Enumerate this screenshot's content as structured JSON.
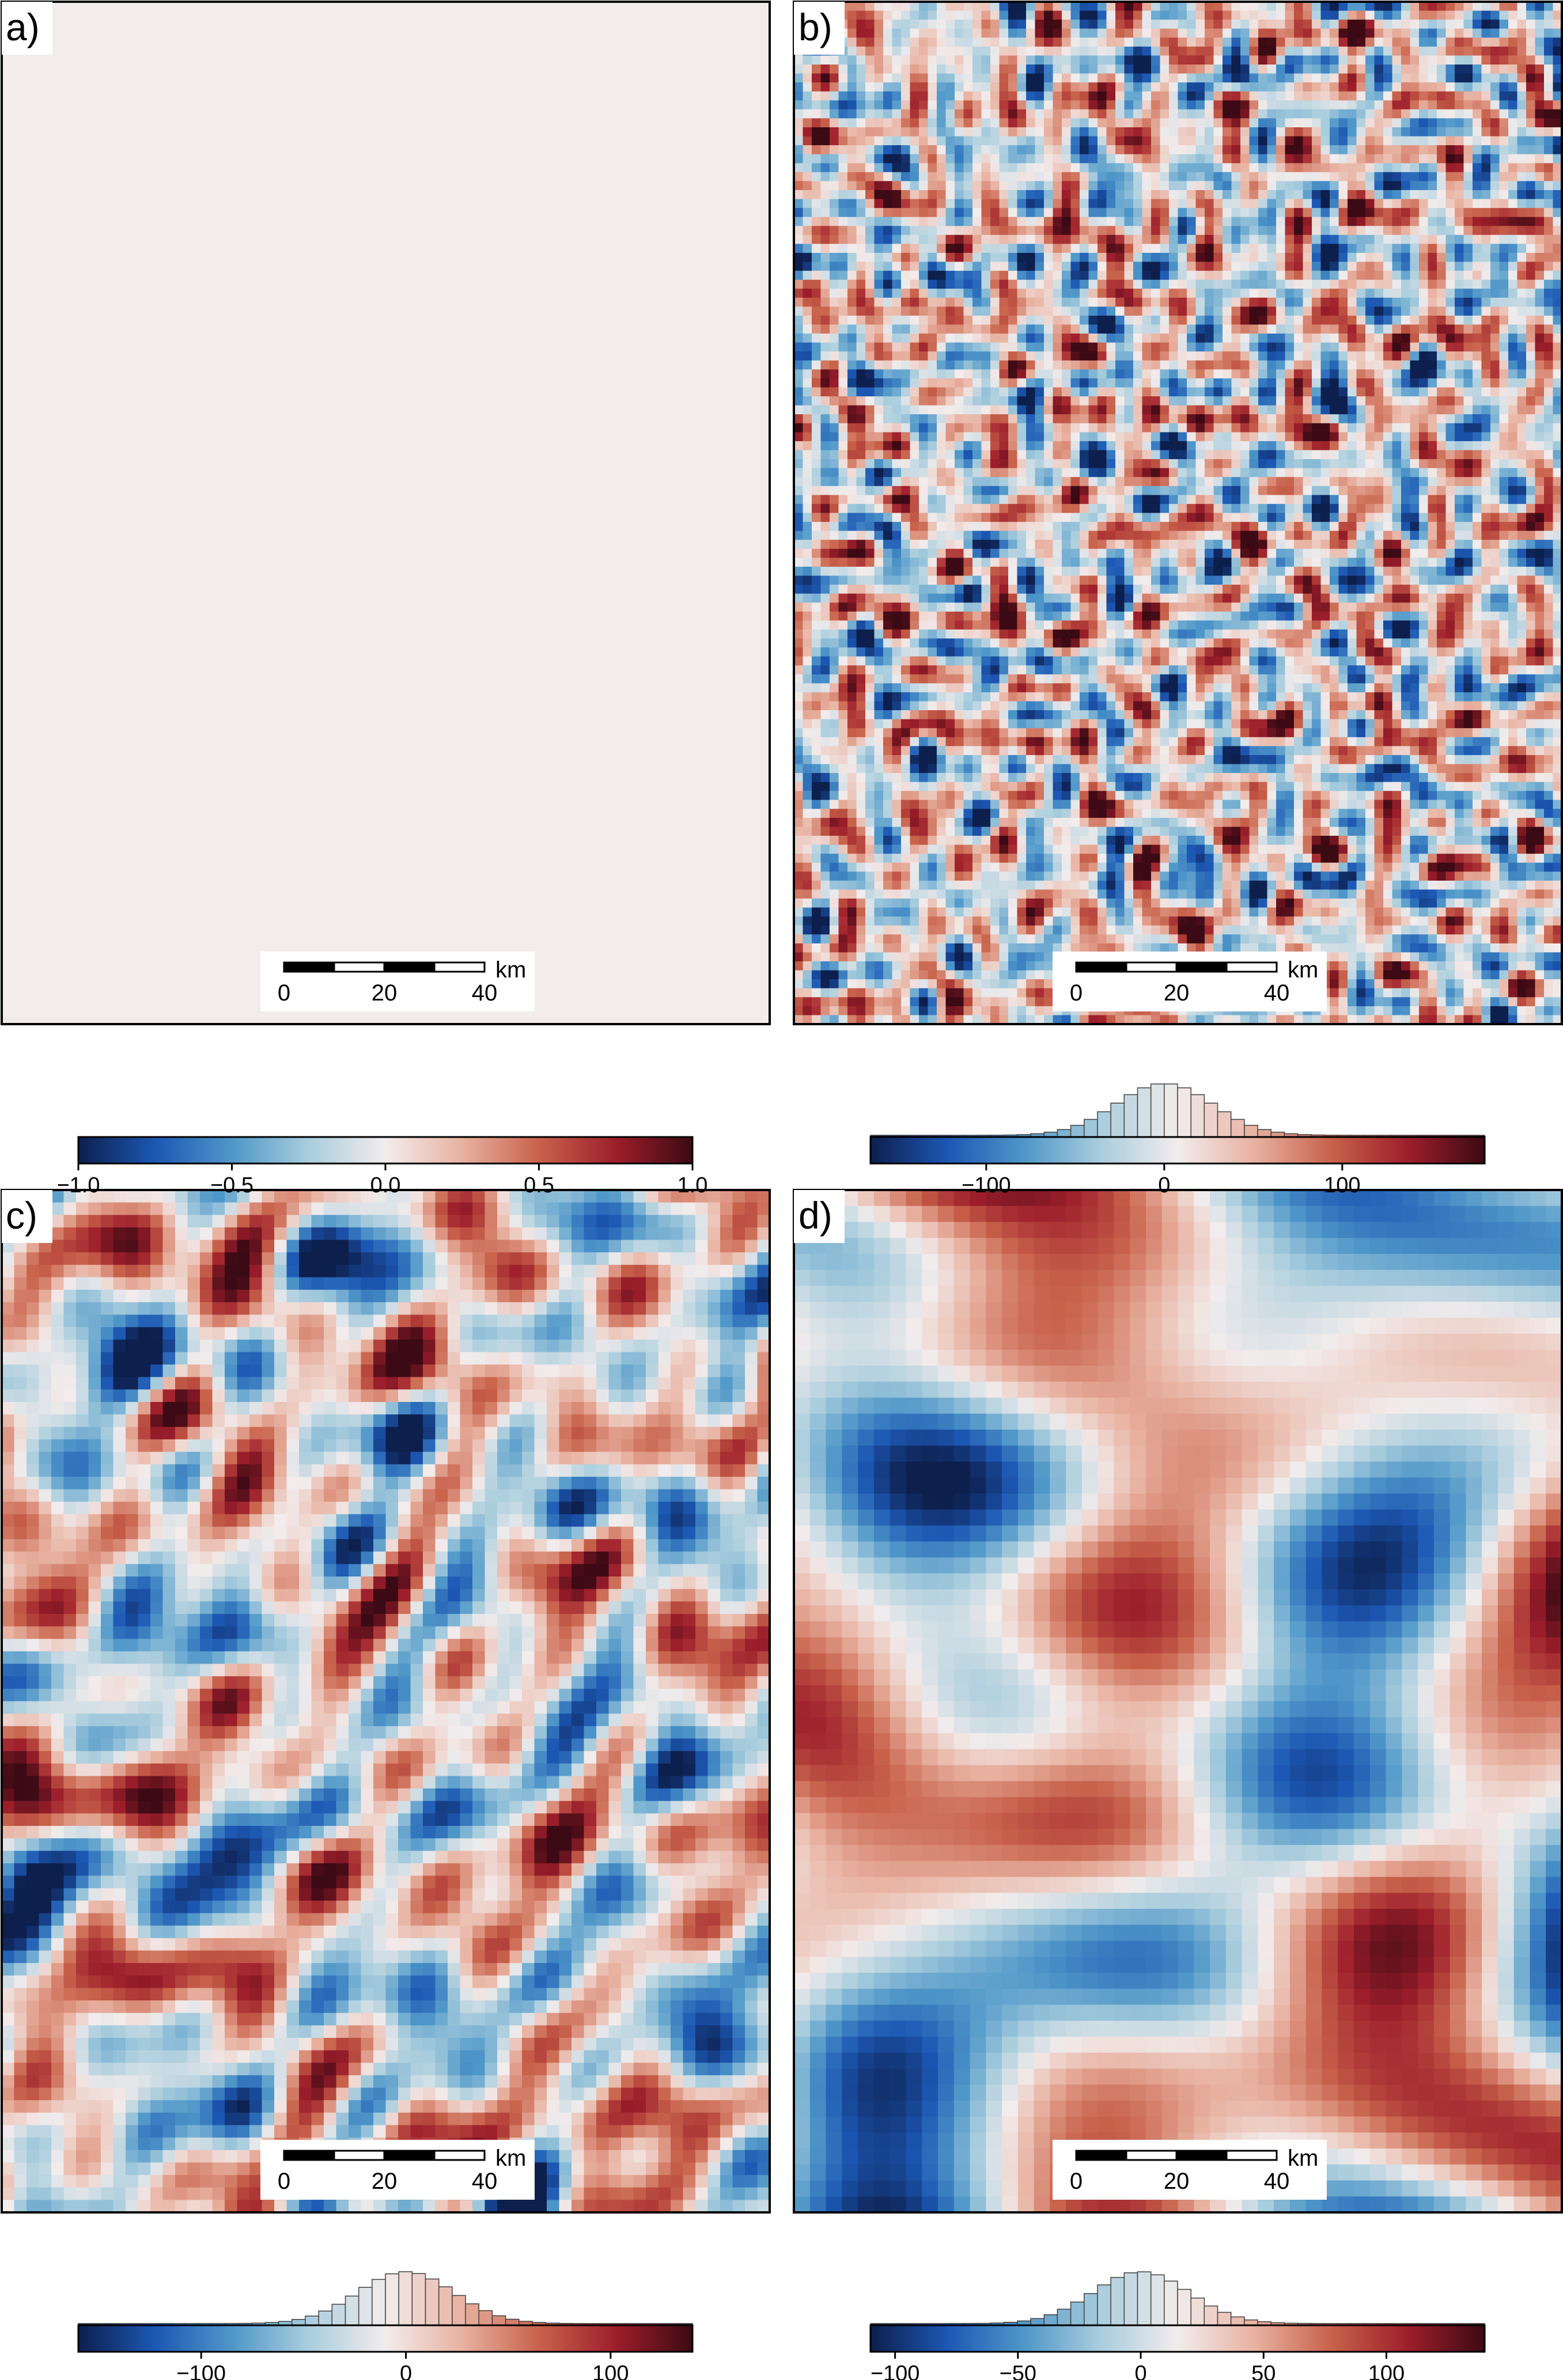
{
  "colors": {
    "cmap": [
      "#0d1f4d",
      "#1c57b3",
      "#4f97c9",
      "#a9cddd",
      "#f2ecec",
      "#e8b1a0",
      "#c8624b",
      "#9d1e2b",
      "#3c0a14"
    ],
    "uniform_panel": "#f2ecec",
    "histogram_edge": "#404040"
  },
  "chart_data": [
    {
      "type": "heatmap",
      "panel_label": "a)",
      "field": "uniform",
      "value": 0.0,
      "scalebar": {
        "ticks": [
          "0",
          "20",
          "40"
        ],
        "unit": "km"
      }
    },
    {
      "type": "heatmap",
      "panel_label": "b)",
      "field": "random-fine",
      "scalebar": {
        "ticks": [
          "0",
          "20",
          "40"
        ],
        "unit": "km"
      },
      "colorbar": {
        "range": [
          -165,
          180
        ],
        "ticks": [
          {
            "value": -100,
            "label": "−100"
          },
          {
            "value": 0,
            "label": "0"
          },
          {
            "value": 100,
            "label": "100"
          }
        ],
        "histogram": true
      }
    },
    {
      "type": "heatmap",
      "panel_label": "c)",
      "field": "random-medium",
      "scalebar": {
        "ticks": [
          "0",
          "20",
          "40"
        ],
        "unit": "km"
      },
      "colorbar": {
        "range": [
          -160,
          140
        ],
        "ticks": [
          {
            "value": -100,
            "label": "−100"
          },
          {
            "value": 0,
            "label": "0"
          },
          {
            "value": 100,
            "label": "100"
          }
        ],
        "histogram": true
      }
    },
    {
      "type": "heatmap",
      "panel_label": "d)",
      "field": "random-coarse",
      "scalebar": {
        "ticks": [
          "0",
          "20",
          "40"
        ],
        "unit": "km"
      },
      "colorbar": {
        "range": [
          -110,
          140
        ],
        "ticks": [
          {
            "value": -100,
            "label": "−100"
          },
          {
            "value": -50,
            "label": "−50"
          },
          {
            "value": 0,
            "label": "0"
          },
          {
            "value": 50,
            "label": "50"
          },
          {
            "value": 100,
            "label": "100"
          }
        ],
        "histogram": true
      }
    },
    {
      "type": "colorbar",
      "name": "a-colorbar",
      "range": [
        -1.0,
        1.0
      ],
      "ticks": [
        {
          "value": -1.0,
          "label": "−1.0"
        },
        {
          "value": -0.5,
          "label": "−0.5"
        },
        {
          "value": 0.0,
          "label": "0.0"
        },
        {
          "value": 0.5,
          "label": "0.5"
        },
        {
          "value": 1.0,
          "label": "1.0"
        }
      ]
    }
  ]
}
